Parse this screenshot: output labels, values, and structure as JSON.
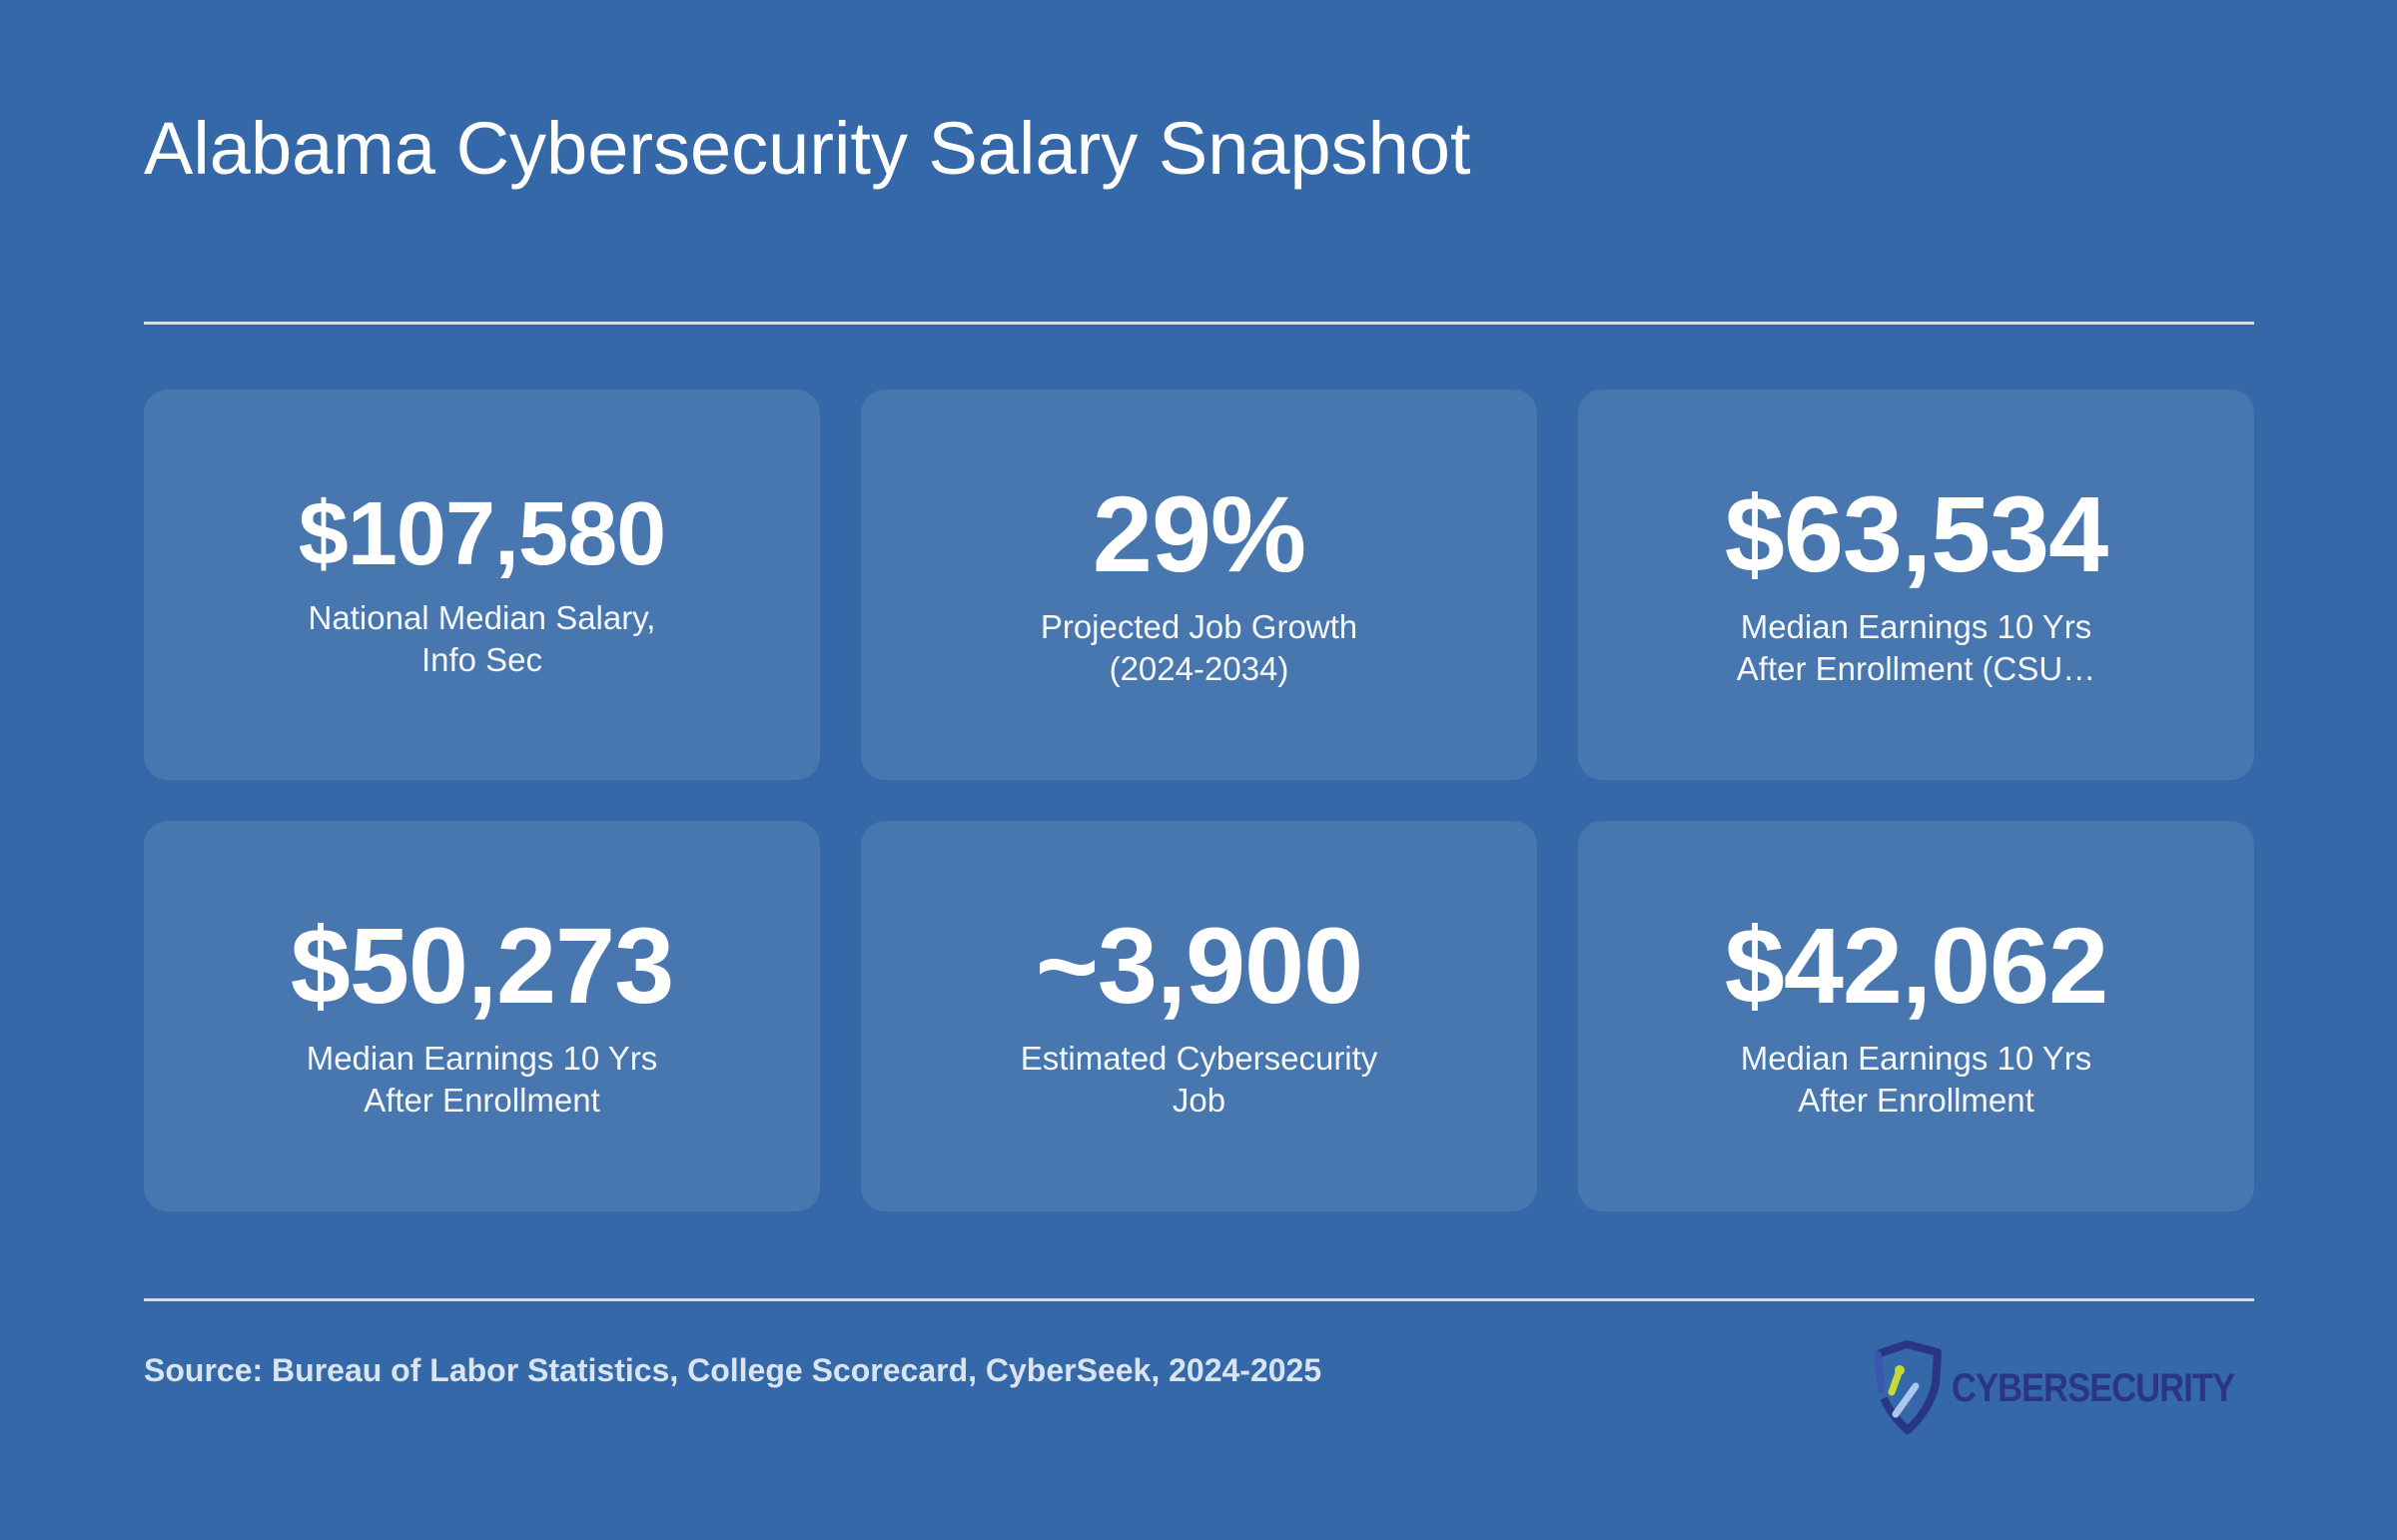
{
  "header": {
    "title": "Alabama Cybersecurity Salary Snapshot"
  },
  "stats": [
    {
      "value": "$107,580",
      "label": "National Median Salary, Info Sec"
    },
    {
      "value": "29%",
      "label": "Projected Job Growth (2024-2034)"
    },
    {
      "value": "$63,534",
      "label": "Median Earnings 10 Yrs After Enrollment (CSU…"
    },
    {
      "value": "$50,273",
      "label": "Median Earnings 10 Yrs After Enrollment"
    },
    {
      "value": "~3,900",
      "label": "Estimated Cybersecurity Job"
    },
    {
      "value": "$42,062",
      "label": "Median Earnings 10 Yrs After Enrollment"
    }
  ],
  "footer": {
    "source": "Source: Bureau of Labor Statistics, College Scorecard, CyberSeek, 2024-2025",
    "logo_text": "CYBERSECURITY"
  },
  "colors": {
    "background": "#3468a8",
    "card": "rgba(255,255,255,0.10)",
    "logo_navy": "#2b3585",
    "logo_accent": "#c6d93a"
  }
}
